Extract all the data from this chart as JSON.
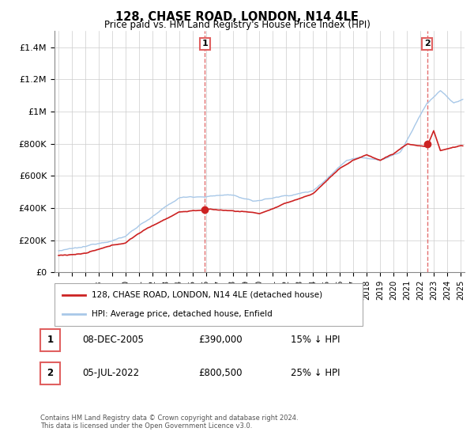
{
  "title": "128, CHASE ROAD, LONDON, N14 4LE",
  "subtitle": "Price paid vs. HM Land Registry's House Price Index (HPI)",
  "ylabel_ticks": [
    "£0",
    "£200K",
    "£400K",
    "£600K",
    "£800K",
    "£1M",
    "£1.2M",
    "£1.4M"
  ],
  "ytick_values": [
    0,
    200000,
    400000,
    600000,
    800000,
    1000000,
    1200000,
    1400000
  ],
  "ylim": [
    0,
    1500000
  ],
  "xlim_start": 1994.7,
  "xlim_end": 2025.3,
  "hpi_color": "#a8c8e8",
  "price_color": "#cc2222",
  "vline_color": "#e06060",
  "marker1_x": 2005.93,
  "marker1_y": 390000,
  "marker2_x": 2022.5,
  "marker2_y": 800500,
  "annotation1_label": "1",
  "annotation2_label": "2",
  "legend_line1": "128, CHASE ROAD, LONDON, N14 4LE (detached house)",
  "legend_line2": "HPI: Average price, detached house, Enfield",
  "table_row1": [
    "1",
    "08-DEC-2005",
    "£390,000",
    "15% ↓ HPI"
  ],
  "table_row2": [
    "2",
    "05-JUL-2022",
    "£800,500",
    "25% ↓ HPI"
  ],
  "footer": "Contains HM Land Registry data © Crown copyright and database right 2024.\nThis data is licensed under the Open Government Licence v3.0.",
  "background_color": "#ffffff",
  "grid_color": "#cccccc"
}
